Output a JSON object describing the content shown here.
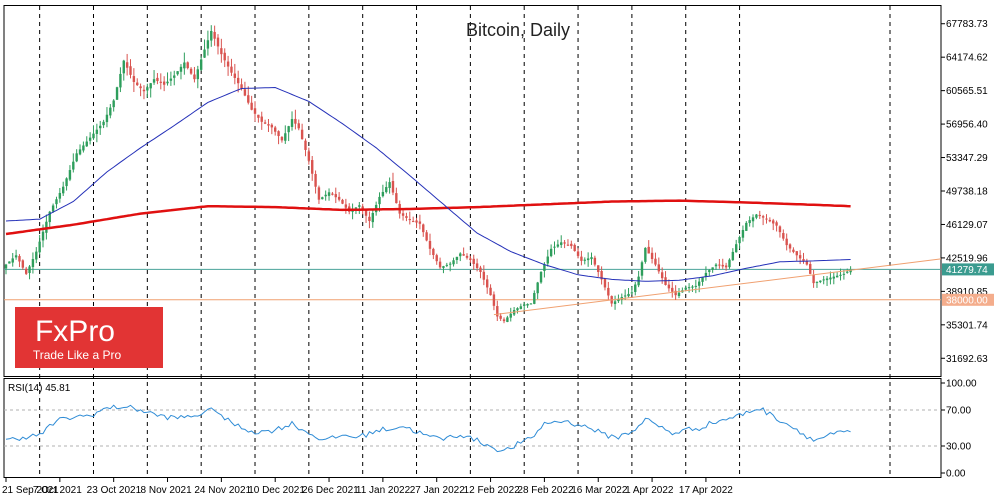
{
  "chart_data": {
    "type": "candlestick",
    "title": "Bitcoin, Daily",
    "y_ticks": [
      "67783.73",
      "64174.62",
      "60565.51",
      "56956.40",
      "53347.29",
      "49738.18",
      "46129.07",
      "42519.96",
      "38910.85",
      "35301.74",
      "31692.63"
    ],
    "ylim": [
      29888,
      69588
    ],
    "x_ticks": [
      "21 Sep 2021",
      "7 Oct 2021",
      "23 Oct 2021",
      "8 Nov 2021",
      "24 Nov 2021",
      "10 Dec 2021",
      "26 Dec 2021",
      "11 Jan 2022",
      "27 Jan 2022",
      "12 Feb 2022",
      "28 Feb 2022",
      "16 Mar 2022",
      "1 Apr 2022",
      "17 Apr 2022"
    ],
    "current_price": "41279.74",
    "level_label": "38000.00",
    "price_anchors": [
      [
        0,
        41800
      ],
      [
        3,
        42800
      ],
      [
        6,
        40800
      ],
      [
        9,
        43200
      ],
      [
        13,
        47500
      ],
      [
        17,
        50200
      ],
      [
        21,
        53800
      ],
      [
        25,
        55500
      ],
      [
        29,
        57200
      ],
      [
        32,
        59500
      ],
      [
        35,
        63800
      ],
      [
        38,
        61500
      ],
      [
        41,
        60500
      ],
      [
        44,
        61800
      ],
      [
        47,
        61200
      ],
      [
        50,
        62200
      ],
      [
        53,
        63600
      ],
      [
        56,
        61800
      ],
      [
        59,
        65000
      ],
      [
        61,
        67000
      ],
      [
        64,
        64500
      ],
      [
        67,
        62500
      ],
      [
        70,
        60800
      ],
      [
        73,
        58500
      ],
      [
        76,
        57200
      ],
      [
        79,
        56600
      ],
      [
        82,
        55200
      ],
      [
        85,
        57500
      ],
      [
        87,
        56500
      ],
      [
        90,
        53000
      ],
      [
        93,
        48800
      ],
      [
        96,
        49600
      ],
      [
        99,
        48800
      ],
      [
        102,
        47500
      ],
      [
        105,
        48200
      ],
      [
        108,
        46500
      ],
      [
        111,
        49100
      ],
      [
        114,
        50700
      ],
      [
        117,
        47300
      ],
      [
        120,
        46600
      ],
      [
        123,
        46200
      ],
      [
        126,
        43500
      ],
      [
        129,
        41500
      ],
      [
        132,
        41900
      ],
      [
        135,
        43000
      ],
      [
        138,
        42300
      ],
      [
        141,
        41000
      ],
      [
        144,
        38500
      ],
      [
        146,
        36200
      ],
      [
        148,
        35700
      ],
      [
        151,
        36900
      ],
      [
        154,
        37500
      ],
      [
        156,
        37600
      ],
      [
        159,
        41000
      ],
      [
        162,
        43500
      ],
      [
        165,
        44200
      ],
      [
        168,
        43800
      ],
      [
        171,
        42200
      ],
      [
        174,
        42600
      ],
      [
        177,
        40200
      ],
      [
        180,
        37600
      ],
      [
        183,
        38300
      ],
      [
        186,
        38800
      ],
      [
        188,
        40500
      ],
      [
        190,
        43600
      ],
      [
        193,
        41800
      ],
      [
        196,
        39600
      ],
      [
        199,
        38500
      ],
      [
        202,
        39300
      ],
      [
        205,
        39500
      ],
      [
        208,
        40900
      ],
      [
        211,
        41800
      ],
      [
        214,
        41500
      ],
      [
        217,
        44000
      ],
      [
        220,
        46300
      ],
      [
        223,
        47200
      ],
      [
        226,
        46700
      ],
      [
        229,
        46000
      ],
      [
        232,
        43900
      ],
      [
        235,
        42800
      ],
      [
        238,
        41800
      ],
      [
        240,
        39800
      ],
      [
        243,
        40200
      ],
      [
        246,
        40500
      ],
      [
        249,
        40800
      ],
      [
        251,
        41280
      ]
    ],
    "ma50_anchors": [
      [
        0,
        46500
      ],
      [
        10,
        46700
      ],
      [
        20,
        48600
      ],
      [
        30,
        51800
      ],
      [
        40,
        54400
      ],
      [
        50,
        56800
      ],
      [
        60,
        59300
      ],
      [
        70,
        60800
      ],
      [
        80,
        60900
      ],
      [
        90,
        59400
      ],
      [
        100,
        57000
      ],
      [
        110,
        54400
      ],
      [
        120,
        51400
      ],
      [
        130,
        48300
      ],
      [
        140,
        45200
      ],
      [
        150,
        43200
      ],
      [
        160,
        41800
      ],
      [
        170,
        40700
      ],
      [
        180,
        40200
      ],
      [
        190,
        40000
      ],
      [
        200,
        40100
      ],
      [
        210,
        40600
      ],
      [
        220,
        41400
      ],
      [
        230,
        42100
      ],
      [
        240,
        42200
      ],
      [
        251,
        42350
      ]
    ],
    "ma200_anchors": [
      [
        0,
        45100
      ],
      [
        20,
        46100
      ],
      [
        40,
        47300
      ],
      [
        60,
        48100
      ],
      [
        80,
        48000
      ],
      [
        100,
        47700
      ],
      [
        120,
        47800
      ],
      [
        140,
        48000
      ],
      [
        160,
        48300
      ],
      [
        180,
        48600
      ],
      [
        200,
        48700
      ],
      [
        220,
        48500
      ],
      [
        240,
        48250
      ],
      [
        251,
        48100
      ]
    ],
    "trendline": {
      "start_index": 145,
      "start_value": 36400,
      "end_value": 41200
    },
    "rsi": {
      "label": "RSI(14) 45.81",
      "ticks": [
        "100.00",
        "70.00",
        "30.00",
        "0.00"
      ],
      "levels": [
        30,
        70
      ],
      "anchors": [
        [
          0,
          36
        ],
        [
          5,
          40
        ],
        [
          10,
          42
        ],
        [
          15,
          58
        ],
        [
          20,
          62
        ],
        [
          25,
          64
        ],
        [
          30,
          72
        ],
        [
          35,
          74
        ],
        [
          40,
          70
        ],
        [
          45,
          64
        ],
        [
          50,
          61
        ],
        [
          55,
          63
        ],
        [
          60,
          68
        ],
        [
          62,
          72
        ],
        [
          65,
          60
        ],
        [
          70,
          50
        ],
        [
          75,
          45
        ],
        [
          80,
          48
        ],
        [
          85,
          55
        ],
        [
          90,
          44
        ],
        [
          95,
          36
        ],
        [
          100,
          42
        ],
        [
          105,
          40
        ],
        [
          110,
          47
        ],
        [
          115,
          50
        ],
        [
          118,
          52
        ],
        [
          122,
          46
        ],
        [
          126,
          40
        ],
        [
          130,
          38
        ],
        [
          135,
          43
        ],
        [
          140,
          36
        ],
        [
          145,
          28
        ],
        [
          148,
          24
        ],
        [
          152,
          32
        ],
        [
          156,
          38
        ],
        [
          160,
          55
        ],
        [
          165,
          58
        ],
        [
          170,
          54
        ],
        [
          175,
          48
        ],
        [
          178,
          42
        ],
        [
          182,
          40
        ],
        [
          186,
          46
        ],
        [
          190,
          60
        ],
        [
          194,
          52
        ],
        [
          198,
          44
        ],
        [
          202,
          48
        ],
        [
          206,
          50
        ],
        [
          210,
          56
        ],
        [
          214,
          60
        ],
        [
          218,
          64
        ],
        [
          222,
          70
        ],
        [
          224,
          72
        ],
        [
          228,
          63
        ],
        [
          232,
          55
        ],
        [
          236,
          46
        ],
        [
          240,
          36
        ],
        [
          243,
          40
        ],
        [
          247,
          44
        ],
        [
          251,
          45.81
        ]
      ]
    }
  },
  "logo": {
    "brand": "FxPro",
    "tagline": "Trade Like a Pro"
  },
  "colors": {
    "bull": "#2e9e5c",
    "bear": "#d9534f",
    "ma50": "#2430b8",
    "ma200": "#e01010",
    "trend": "#f0a070",
    "rsi": "#2f8cd6",
    "price_line": "#4aa39a",
    "price_badge": "#3a9b8f",
    "level_line": "#f0a070",
    "level_badge": "#f4ad8c",
    "logo_bg": "#e23434"
  }
}
